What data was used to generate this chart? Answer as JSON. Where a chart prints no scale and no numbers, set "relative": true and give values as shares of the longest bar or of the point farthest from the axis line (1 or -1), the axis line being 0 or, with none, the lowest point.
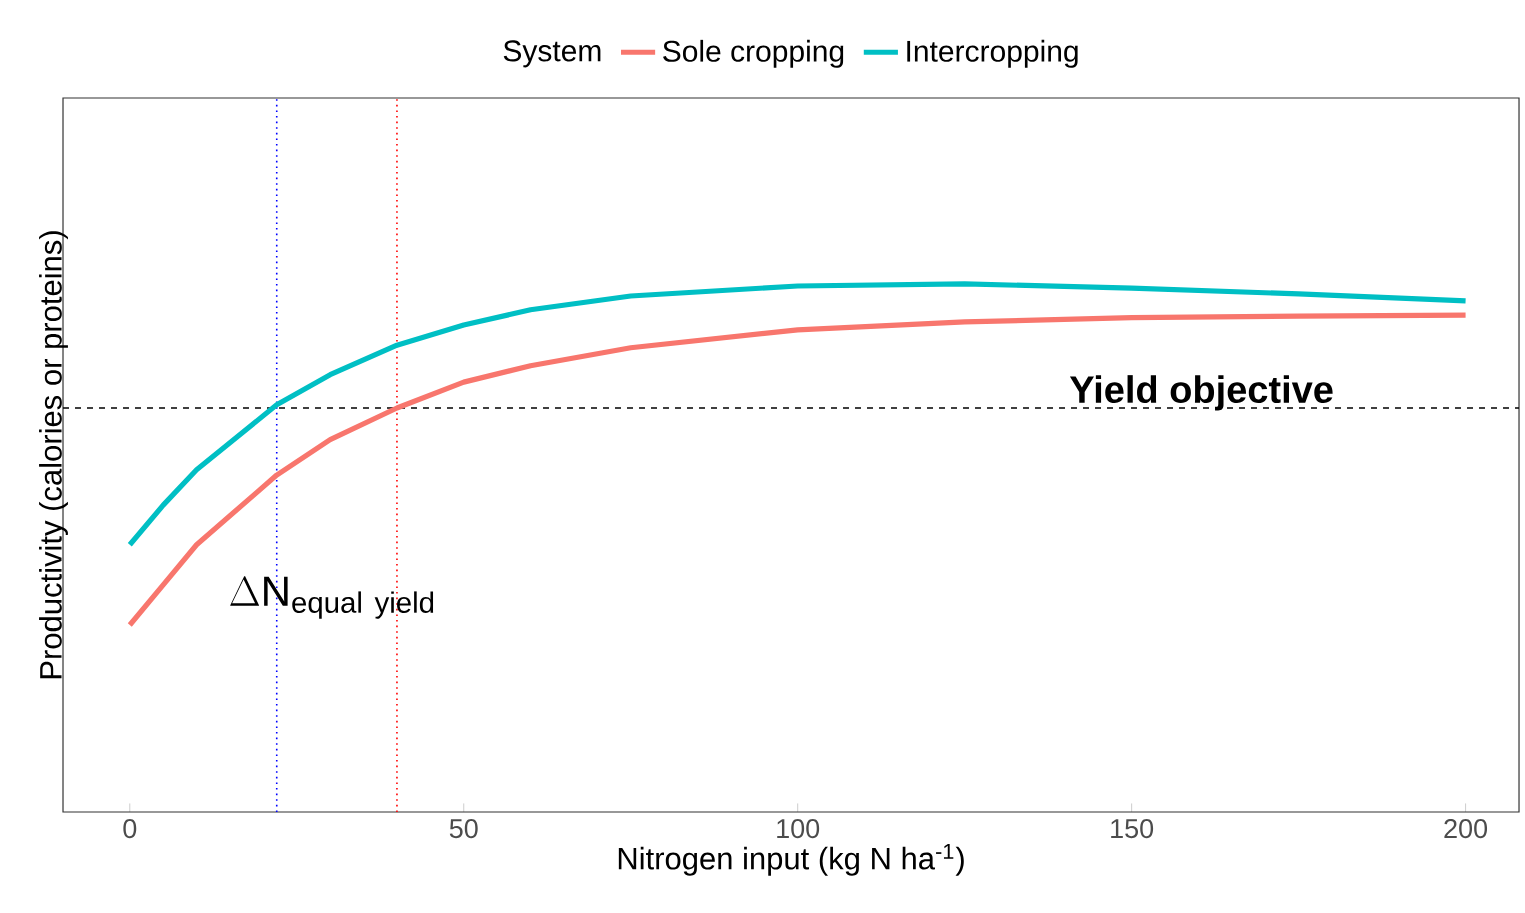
{
  "chart_data": {
    "type": "line",
    "relative": true,
    "xlabel": "Nitrogen input (kg N ha$^{-1}$)",
    "ylabel": "Productivity (calories or proteins)",
    "legend_title": "System",
    "legend": "top",
    "grid": false,
    "xlim": [
      -10,
      208
    ],
    "xticks": [
      0,
      50,
      100,
      150,
      200
    ],
    "series": [
      {
        "name": "Sole cropping",
        "color": "#f8766d",
        "x": [
          0,
          5,
          10,
          22,
          30,
          40,
          50,
          60,
          75,
          100,
          125,
          150,
          175,
          200
        ],
        "values": [
          0.354,
          0.43,
          0.506,
          0.638,
          0.705,
          0.765,
          0.814,
          0.845,
          0.879,
          0.913,
          0.928,
          0.936,
          0.939,
          0.941
        ]
      },
      {
        "name": "Intercropping",
        "color": "#00bfc4",
        "x": [
          0,
          5,
          10,
          22,
          30,
          40,
          50,
          60,
          75,
          100,
          125,
          150,
          175,
          200
        ],
        "values": [
          0.506,
          0.581,
          0.648,
          0.771,
          0.828,
          0.884,
          0.922,
          0.951,
          0.977,
          0.996,
          1.0,
          0.992,
          0.981,
          0.968
        ]
      }
    ],
    "ref_lines": [
      {
        "axis": "y",
        "value": 0.765,
        "color": "#000000",
        "line_style": "dashed"
      },
      {
        "axis": "x",
        "value": 22,
        "color": "#0000ff",
        "line_style": "dotted"
      },
      {
        "axis": "x",
        "value": 40,
        "color": "#ff0000",
        "line_style": "dotted"
      }
    ],
    "annotations": [
      "Yield objective",
      "\\Delta \\mathrm{N}_{\\mathrm{equal\\ yield}}"
    ]
  }
}
